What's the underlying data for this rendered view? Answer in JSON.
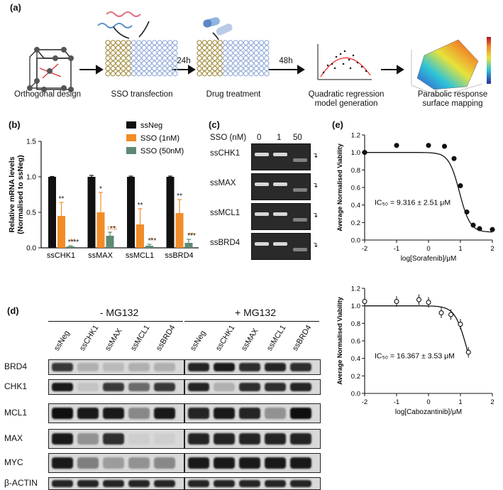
{
  "panels": {
    "a": "(a)",
    "b": "(b)",
    "c": "(c)",
    "d": "(d)",
    "e": "(e)"
  },
  "workflow": {
    "steps": [
      "Orthogonal design",
      "SSO transfection",
      "Drug treatment",
      "Quadratic regression\nmodel generation",
      "Parabolic response\nsurface mapping"
    ],
    "times": [
      "24h",
      "48h"
    ]
  },
  "chart_data": [
    {
      "type": "bar",
      "panel": "b",
      "ylabel": "Relative mRNA levels\n(Normalised to ssNeg)",
      "categories": [
        "ssCHK1",
        "ssMAX",
        "ssMCL1",
        "ssBRD4"
      ],
      "ylim": [
        0,
        1.5
      ],
      "yticks": [
        "0.0",
        "0.5",
        "1.0",
        "1.5"
      ],
      "series": [
        {
          "name": "ssNeg",
          "color": "#111111",
          "values": [
            1.0,
            1.0,
            1.0,
            1.0
          ],
          "errors": [
            0.005,
            0.02,
            0.01,
            0.01
          ],
          "sig": [
            "",
            "",
            "",
            ""
          ]
        },
        {
          "name": "SSO (1nM)",
          "color": "#f28c28",
          "values": [
            0.45,
            0.5,
            0.33,
            0.49
          ],
          "errors": [
            0.19,
            0.28,
            0.22,
            0.19
          ],
          "sig": [
            "**",
            "*",
            "**",
            "**"
          ],
          "sig2": [
            "**",
            "n.s",
            "*",
            "**"
          ]
        },
        {
          "name": "SSO (50nM)",
          "color": "#5e8a75",
          "values": [
            0.02,
            0.17,
            0.03,
            0.07
          ],
          "errors": [
            0.01,
            0.05,
            0.02,
            0.05
          ],
          "sig": [
            "****",
            "**",
            "***",
            "***"
          ]
        }
      ]
    },
    {
      "type": "scatter",
      "panel": "e-top",
      "xlabel": "log[Sorafenib]/μM",
      "ylabel": "Average Normalised Viability",
      "xlim": [
        -2,
        2
      ],
      "ylim": [
        0,
        1.2
      ],
      "xticks": [
        "-2",
        "-1",
        "0",
        "1",
        "2"
      ],
      "yticks": [
        "0.0",
        "0.2",
        "0.4",
        "0.6",
        "0.8",
        "1.0",
        "1.2"
      ],
      "annotation": "IC₅₀ = 9.316 ± 2.51 μM",
      "points": [
        [
          -2,
          1.0
        ],
        [
          -1,
          1.08
        ],
        [
          0,
          1.08
        ],
        [
          0.5,
          1.07
        ],
        [
          0.8,
          0.93
        ],
        [
          1.0,
          0.62
        ],
        [
          1.2,
          0.32
        ],
        [
          1.4,
          0.17
        ],
        [
          1.6,
          0.13
        ],
        [
          2,
          0.12
        ]
      ],
      "fit": {
        "top": 1.0,
        "bottom": 0.09,
        "logIC50": 0.97,
        "hill": 2.6
      }
    },
    {
      "type": "scatter",
      "panel": "e-bottom",
      "xlabel": "log[Cabozantinib]/μM",
      "ylabel": "Average Normalised Viability",
      "xlim": [
        -2,
        2
      ],
      "ylim": [
        0,
        1.2
      ],
      "xticks": [
        "-2",
        "-1",
        "0",
        "1",
        "2"
      ],
      "yticks": [
        "0.0",
        "0.2",
        "0.4",
        "0.6",
        "0.8",
        "1.0",
        "1.2"
      ],
      "annotation": "IC₅₀ = 16.367 ± 3.53 μM",
      "points": [
        [
          -2,
          1.05
        ],
        [
          -1,
          1.05
        ],
        [
          -0.3,
          1.07
        ],
        [
          0,
          1.04
        ],
        [
          0.4,
          0.92
        ],
        [
          0.7,
          0.9
        ],
        [
          1.0,
          0.79
        ],
        [
          1.25,
          0.47
        ]
      ],
      "fit": {
        "top": 1.0,
        "bottom": 0.0,
        "logIC50": 1.21,
        "hill": 2.3
      }
    }
  ],
  "gel": {
    "title": "SSO (nM)",
    "concentrations": [
      "0",
      "1",
      "50"
    ],
    "rows": [
      "ssCHK1",
      "ssMAX",
      "ssMCL1",
      "ssBRD4"
    ]
  },
  "western": {
    "groups": [
      "- MG132",
      "+ MG132"
    ],
    "lanes": [
      "ssNeg",
      "ssCHK1",
      "ssMAX",
      "ssMCL1",
      "ssBRD4"
    ],
    "proteins": [
      "BRD4",
      "CHK1",
      "MCL1",
      "MAX",
      "MYC",
      "β-ACTIN"
    ]
  }
}
